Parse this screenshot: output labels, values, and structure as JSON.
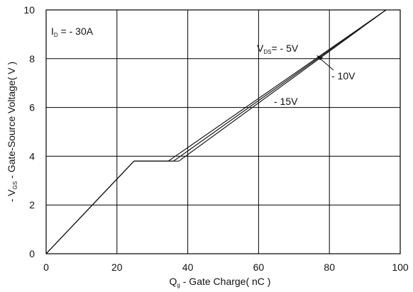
{
  "chart_data": {
    "type": "line",
    "title": "",
    "xlabel": {
      "main": "Q",
      "sub": "g",
      "rest": " - Gate Charge( nC )"
    },
    "ylabel": {
      "pre": "- V",
      "sub": "GS",
      "rest": " - Gate-Source Voltage( V )"
    },
    "xlim": [
      0,
      100
    ],
    "ylim": [
      0,
      10
    ],
    "xticks": [
      0,
      20,
      40,
      60,
      80,
      100
    ],
    "yticks": [
      0,
      2,
      4,
      6,
      8,
      10
    ],
    "grid": true,
    "annotation_id": {
      "pre": "I",
      "sub": "D",
      "rest": " = - 30A"
    },
    "series": [
      {
        "name": {
          "pre": "V",
          "sub": "DS",
          "rest": "= - 5V"
        },
        "x": [
          0,
          24.8,
          34.5,
          96
        ],
        "y": [
          0,
          3.8,
          3.8,
          10
        ]
      },
      {
        "name": {
          "pre": "",
          "sub": "",
          "rest": "- 10V"
        },
        "x": [
          0,
          24.8,
          36.0,
          96
        ],
        "y": [
          0,
          3.8,
          3.8,
          10
        ]
      },
      {
        "name": {
          "pre": "",
          "sub": "",
          "rest": "- 15V"
        },
        "x": [
          0,
          24.8,
          37.5,
          96
        ],
        "y": [
          0,
          3.8,
          3.8,
          10
        ]
      }
    ],
    "colors": {
      "line": "#1a1a1a",
      "grid": "#000000",
      "frame": "#000000"
    }
  }
}
